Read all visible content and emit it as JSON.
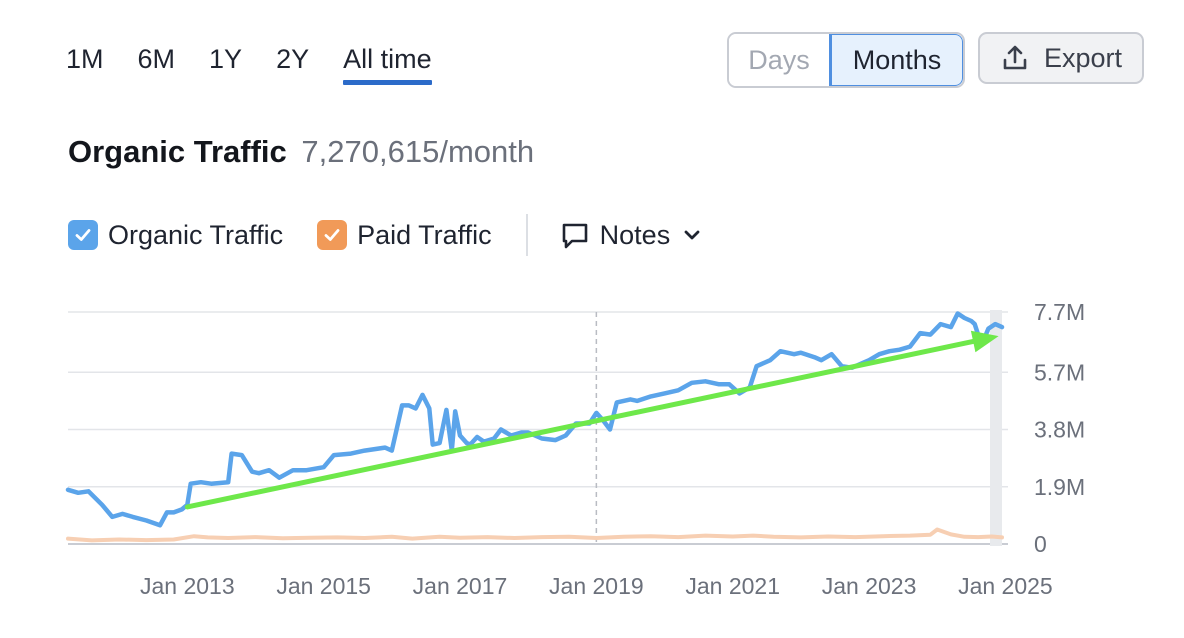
{
  "range_tabs": [
    "1M",
    "6M",
    "1Y",
    "2Y",
    "All time"
  ],
  "range_active": "All time",
  "granularity": {
    "days": "Days",
    "months": "Months",
    "selected": "Months"
  },
  "export_label": "Export",
  "header": {
    "title": "Organic Traffic",
    "value": "7,270,615/month"
  },
  "legend": {
    "organic_label": "Organic Traffic",
    "paid_label": "Paid Traffic",
    "notes_label": "Notes"
  },
  "colors": {
    "organic": "#5ba4ea",
    "paid": "#f7cfb3",
    "trend_arrow": "#6ee84a",
    "organic_checkbox": "#5ba4ea",
    "paid_checkbox": "#f19a58",
    "accent": "#2c6bc9"
  },
  "chart_data": {
    "type": "line",
    "title": "Organic Traffic",
    "xlabel": "",
    "ylabel": "",
    "ylim": [
      0,
      7700000
    ],
    "xlim": [
      2011.25,
      2024.95
    ],
    "y_ticks": [
      {
        "value": 0,
        "label": "0"
      },
      {
        "value": 1900000,
        "label": "1.9M"
      },
      {
        "value": 3800000,
        "label": "3.8M"
      },
      {
        "value": 5700000,
        "label": "5.7M"
      },
      {
        "value": 7700000,
        "label": "7.7M"
      }
    ],
    "x_ticks": [
      {
        "value": 2013.0,
        "label": "Jan 2013"
      },
      {
        "value": 2015.0,
        "label": "Jan 2015"
      },
      {
        "value": 2017.0,
        "label": "Jan 2017"
      },
      {
        "value": 2019.0,
        "label": "Jan 2019"
      },
      {
        "value": 2021.0,
        "label": "Jan 2021"
      },
      {
        "value": 2023.0,
        "label": "Jan 2023"
      },
      {
        "value": 2025.0,
        "label": "Jan 2025"
      }
    ],
    "marker_line_x": 2019.0,
    "series": [
      {
        "name": "Organic Traffic",
        "x": [
          2011.25,
          2011.4,
          2011.55,
          2011.75,
          2011.9,
          2012.05,
          2012.2,
          2012.4,
          2012.6,
          2012.7,
          2012.8,
          2012.92,
          2013.0,
          2013.05,
          2013.2,
          2013.35,
          2013.6,
          2013.65,
          2013.8,
          2013.95,
          2014.05,
          2014.2,
          2014.35,
          2014.55,
          2014.75,
          2015.0,
          2015.15,
          2015.4,
          2015.6,
          2015.9,
          2016.0,
          2016.15,
          2016.25,
          2016.35,
          2016.45,
          2016.55,
          2016.6,
          2016.7,
          2016.8,
          2016.88,
          2016.93,
          2017.0,
          2017.1,
          2017.15,
          2017.25,
          2017.35,
          2017.5,
          2017.6,
          2017.75,
          2017.9,
          2018.0,
          2018.2,
          2018.4,
          2018.55,
          2018.7,
          2018.9,
          2019.0,
          2019.1,
          2019.2,
          2019.3,
          2019.4,
          2019.5,
          2019.6,
          2019.8,
          2020.0,
          2020.2,
          2020.4,
          2020.6,
          2020.8,
          2020.95,
          2021.1,
          2021.25,
          2021.35,
          2021.55,
          2021.7,
          2021.9,
          2022.0,
          2022.2,
          2022.3,
          2022.45,
          2022.6,
          2022.75,
          2022.9,
          2023.0,
          2023.15,
          2023.3,
          2023.45,
          2023.6,
          2023.75,
          2023.9,
          2024.05,
          2024.2,
          2024.3,
          2024.4,
          2024.5,
          2024.55,
          2024.65,
          2024.75,
          2024.85,
          2024.95
        ],
        "values": [
          1800000,
          1700000,
          1750000,
          1300000,
          900000,
          1000000,
          900000,
          780000,
          620000,
          1050000,
          1050000,
          1150000,
          1300000,
          2000000,
          2050000,
          2000000,
          2050000,
          3000000,
          2950000,
          2400000,
          2350000,
          2450000,
          2200000,
          2450000,
          2450000,
          2550000,
          2950000,
          3000000,
          3100000,
          3200000,
          3100000,
          4600000,
          4600000,
          4500000,
          4950000,
          4500000,
          3300000,
          3350000,
          4450000,
          3100000,
          4400000,
          3600000,
          3350000,
          3300000,
          3550000,
          3400000,
          3500000,
          3800000,
          3600000,
          3700000,
          3700000,
          3500000,
          3450000,
          3600000,
          4000000,
          4000000,
          4350000,
          4100000,
          3800000,
          4700000,
          4750000,
          4800000,
          4750000,
          4900000,
          5000000,
          5100000,
          5350000,
          5400000,
          5300000,
          5300000,
          5000000,
          5200000,
          5900000,
          6100000,
          6400000,
          6300000,
          6350000,
          6200000,
          6100000,
          6300000,
          5900000,
          5850000,
          6000000,
          6100000,
          6300000,
          6400000,
          6450000,
          6550000,
          7000000,
          6950000,
          7300000,
          7200000,
          7650000,
          7500000,
          7400000,
          7300000,
          6600000,
          7150000,
          7300000,
          7200000
        ]
      },
      {
        "name": "Paid Traffic",
        "x": [
          2011.25,
          2011.6,
          2012.0,
          2012.4,
          2012.8,
          2013.1,
          2013.3,
          2013.6,
          2014.0,
          2014.4,
          2014.8,
          2015.2,
          2015.6,
          2016.0,
          2016.3,
          2016.7,
          2017.0,
          2017.4,
          2017.8,
          2018.2,
          2018.6,
          2019.0,
          2019.4,
          2019.8,
          2020.2,
          2020.6,
          2021.0,
          2021.3,
          2021.6,
          2022.0,
          2022.4,
          2022.8,
          2023.2,
          2023.6,
          2023.9,
          2024.0,
          2024.2,
          2024.4,
          2024.6,
          2024.8,
          2024.95
        ],
        "values": [
          180000,
          120000,
          150000,
          130000,
          150000,
          260000,
          220000,
          200000,
          230000,
          190000,
          210000,
          220000,
          200000,
          240000,
          180000,
          240000,
          210000,
          230000,
          200000,
          230000,
          240000,
          200000,
          240000,
          260000,
          230000,
          280000,
          250000,
          280000,
          240000,
          220000,
          250000,
          230000,
          260000,
          280000,
          310000,
          480000,
          320000,
          240000,
          230000,
          250000,
          220000
        ]
      }
    ],
    "annotations": [
      {
        "type": "trend-arrow",
        "from": {
          "x": 2013.0,
          "y": 1230000
        },
        "to": {
          "x": 2024.9,
          "y": 6900000
        }
      }
    ]
  }
}
